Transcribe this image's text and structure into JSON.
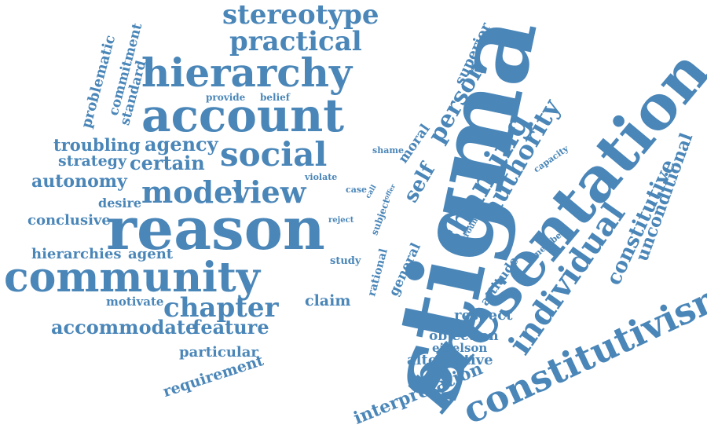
{
  "style": {
    "word_color": "#4a86b8",
    "background": "#ffffff"
  },
  "words": [
    "stigma",
    "presentation",
    "reason",
    "community",
    "account",
    "hierarchy",
    "constitutivism",
    "individual",
    "shaming",
    "view",
    "model",
    "social",
    "stereotype",
    "practical",
    "chapter",
    "authority",
    "person",
    "self",
    "constitutive",
    "unconditional",
    "certain",
    "agency",
    "troubling",
    "strategy",
    "autonomy",
    "accommodate",
    "feature",
    "conclusive",
    "hierarchies",
    "agent",
    "interpretation",
    "requirement",
    "alternative",
    "respect",
    "objection",
    "eidelson",
    "claim",
    "particular",
    "motivate",
    "superior",
    "moral",
    "general",
    "rational",
    "attitude",
    "desire",
    "problematic",
    "commitment",
    "standard",
    "provide",
    "belief",
    "shame",
    "violate",
    "case",
    "call",
    "offer",
    "subject",
    "reject",
    "ground",
    "member",
    "capacity",
    "study"
  ]
}
